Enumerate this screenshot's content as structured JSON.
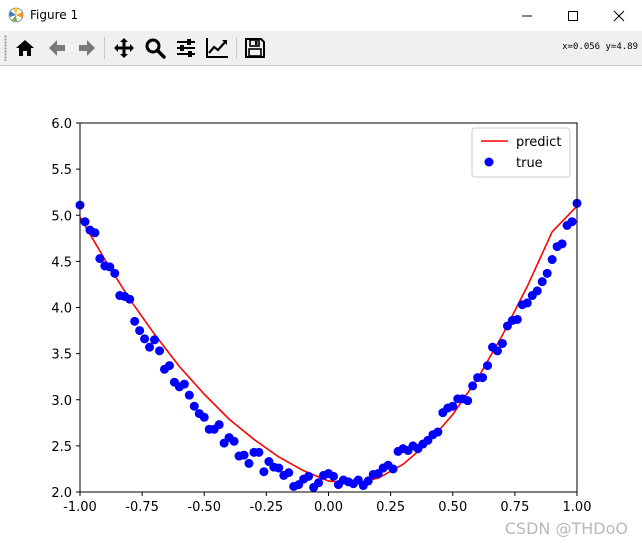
{
  "window": {
    "title": "Figure 1",
    "controls": [
      "minimize",
      "maximize",
      "close"
    ]
  },
  "toolbar": {
    "buttons": [
      {
        "name": "home",
        "icon": "home-icon"
      },
      {
        "name": "back",
        "icon": "arrow-left-icon"
      },
      {
        "name": "forward",
        "icon": "arrow-right-icon"
      },
      {
        "name": "pan",
        "icon": "move-icon"
      },
      {
        "name": "zoom",
        "icon": "magnifier-icon"
      },
      {
        "name": "configure-subplots",
        "icon": "sliders-icon"
      },
      {
        "name": "edit-axis",
        "icon": "line-chart-icon"
      },
      {
        "name": "save",
        "icon": "floppy-disk-icon"
      }
    ],
    "coordinates": "x=0.056 y=4.89"
  },
  "watermark": "CSDN @THDoO",
  "chart_data": {
    "type": "scatter",
    "xlim": [
      -1.0,
      1.0
    ],
    "ylim": [
      2.0,
      6.0
    ],
    "xticks": [
      "-1.00",
      "-0.75",
      "-0.50",
      "-0.25",
      "0.00",
      "0.25",
      "0.50",
      "0.75",
      "1.00"
    ],
    "xtick_values": [
      -1.0,
      -0.75,
      -0.5,
      -0.25,
      0.0,
      0.25,
      0.5,
      0.75,
      1.0
    ],
    "yticks": [
      "2.0",
      "2.5",
      "3.0",
      "3.5",
      "4.0",
      "4.5",
      "5.0",
      "5.5",
      "6.0"
    ],
    "ytick_values": [
      2.0,
      2.5,
      3.0,
      3.5,
      4.0,
      4.5,
      5.0,
      5.5,
      6.0
    ],
    "grid": false,
    "legend_position": "top-right",
    "series": [
      {
        "name": "predict",
        "kind": "line",
        "color": "#ff0000",
        "x": [
          -1.0,
          -0.9,
          -0.8,
          -0.7,
          -0.6,
          -0.5,
          -0.4,
          -0.3,
          -0.2,
          -0.1,
          0.0,
          0.1,
          0.2,
          0.3,
          0.4,
          0.5,
          0.6,
          0.7,
          0.8,
          0.9,
          1.0
        ],
        "y": [
          4.98,
          4.52,
          4.09,
          3.71,
          3.36,
          3.06,
          2.79,
          2.57,
          2.38,
          2.23,
          2.12,
          2.09,
          2.15,
          2.3,
          2.53,
          2.84,
          3.23,
          3.7,
          4.23,
          4.82,
          5.1
        ]
      },
      {
        "name": "true",
        "kind": "scatter",
        "color": "#0000ff",
        "x": [
          -1.0,
          -0.98,
          -0.96,
          -0.94,
          -0.92,
          -0.9,
          -0.88,
          -0.86,
          -0.84,
          -0.82,
          -0.8,
          -0.78,
          -0.76,
          -0.74,
          -0.72,
          -0.7,
          -0.68,
          -0.66,
          -0.64,
          -0.62,
          -0.6,
          -0.58,
          -0.56,
          -0.54,
          -0.52,
          -0.5,
          -0.48,
          -0.46,
          -0.44,
          -0.42,
          -0.4,
          -0.38,
          -0.36,
          -0.34,
          -0.32,
          -0.3,
          -0.28,
          -0.26,
          -0.24,
          -0.22,
          -0.2,
          -0.18,
          -0.16,
          -0.14,
          -0.12,
          -0.1,
          -0.08,
          -0.06,
          -0.04,
          -0.02,
          0.0,
          0.02,
          0.04,
          0.06,
          0.08,
          0.1,
          0.12,
          0.14,
          0.16,
          0.18,
          0.2,
          0.22,
          0.24,
          0.26,
          0.28,
          0.3,
          0.32,
          0.34,
          0.36,
          0.38,
          0.4,
          0.42,
          0.44,
          0.46,
          0.48,
          0.5,
          0.52,
          0.54,
          0.56,
          0.58,
          0.6,
          0.62,
          0.64,
          0.66,
          0.68,
          0.7,
          0.72,
          0.74,
          0.76,
          0.78,
          0.8,
          0.82,
          0.84,
          0.86,
          0.88,
          0.9,
          0.92,
          0.94,
          0.96,
          0.98,
          1.0
        ],
        "y": [
          5.11,
          4.93,
          4.84,
          4.81,
          4.53,
          4.45,
          4.44,
          4.37,
          4.13,
          4.12,
          4.09,
          3.85,
          3.75,
          3.66,
          3.57,
          3.65,
          3.53,
          3.33,
          3.37,
          3.19,
          3.14,
          3.17,
          3.05,
          2.93,
          2.85,
          2.81,
          2.68,
          2.68,
          2.73,
          2.53,
          2.59,
          2.55,
          2.39,
          2.4,
          2.31,
          2.43,
          2.43,
          2.22,
          2.33,
          2.27,
          2.26,
          2.18,
          2.21,
          2.06,
          2.08,
          2.14,
          2.17,
          2.05,
          2.1,
          2.18,
          2.2,
          2.17,
          2.08,
          2.13,
          2.11,
          2.09,
          2.13,
          2.07,
          2.12,
          2.19,
          2.2,
          2.26,
          2.29,
          2.25,
          2.44,
          2.47,
          2.45,
          2.5,
          2.47,
          2.52,
          2.56,
          2.62,
          2.65,
          2.86,
          2.91,
          2.93,
          3.01,
          3.01,
          2.99,
          3.15,
          3.24,
          3.24,
          3.37,
          3.57,
          3.53,
          3.61,
          3.8,
          3.86,
          3.87,
          4.03,
          4.05,
          4.13,
          4.18,
          4.28,
          4.37,
          4.52,
          4.66,
          4.69,
          4.89,
          4.93,
          5.13
        ]
      }
    ]
  }
}
